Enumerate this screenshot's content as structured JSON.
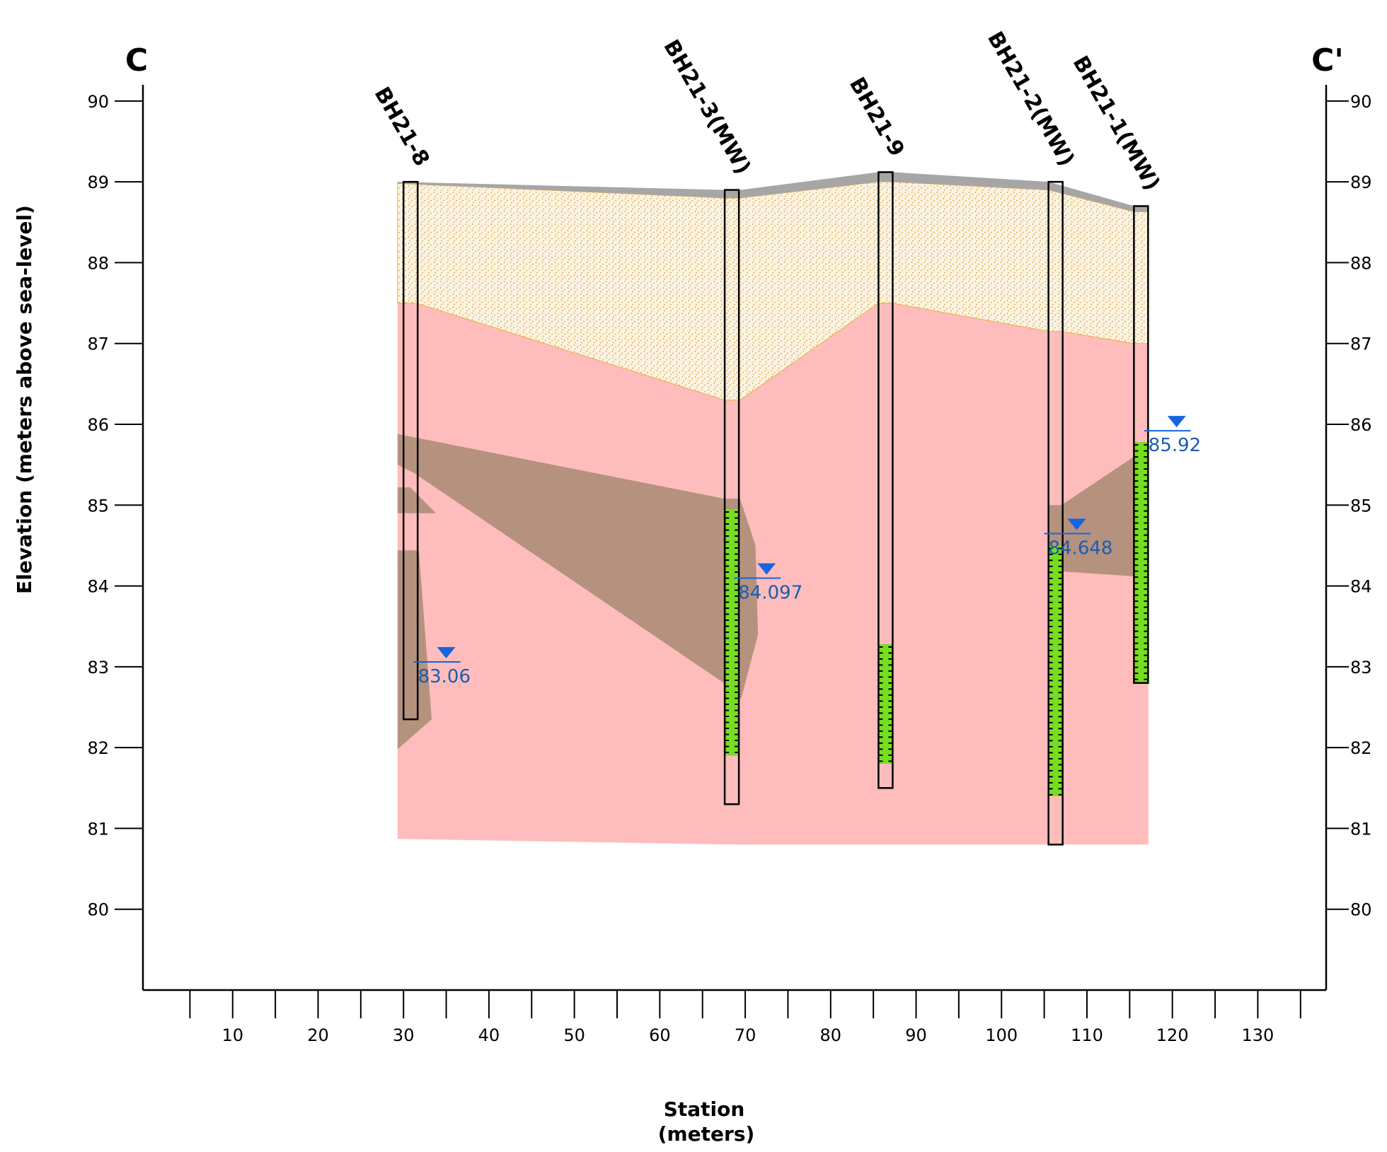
{
  "corner_labels": {
    "left": "C",
    "right": "C'"
  },
  "axes": {
    "y_title": "Elevation (meters above sea-level)",
    "x_title_line1": "Station",
    "x_title_line2": "(meters)",
    "y_range": [
      79,
      90.2
    ],
    "x_range": [
      -0.5,
      138
    ],
    "y_ticks": [
      "90",
      "89",
      "88",
      "87",
      "86",
      "85",
      "84",
      "83",
      "82",
      "81",
      "80"
    ],
    "x_ticks": [
      "10",
      "20",
      "30",
      "40",
      "50",
      "60",
      "70",
      "80",
      "90",
      "100",
      "110",
      "120",
      "130"
    ]
  },
  "colors": {
    "sand": "#fbf3e2",
    "sand_dots": "#d9a040",
    "clay": "#ffbcbc",
    "silt": "#b5927e",
    "topsoil": "#a6a6a6",
    "screen": "#77dd22",
    "water": "#1565e0"
  },
  "chart_data": {
    "type": "cross-section",
    "boreholes": [
      {
        "name": "BH21-8",
        "station": 30,
        "top": 89.0,
        "bottom": 82.35
      },
      {
        "name": "BH21-3(MW)",
        "station": 67.6,
        "top": 88.9,
        "bottom": 81.3,
        "screen_top": 84.95,
        "screen_bottom": 81.9
      },
      {
        "name": "BH21-9",
        "station": 85.6,
        "top": 89.12,
        "bottom": 81.5,
        "screen_top": 83.28,
        "screen_bottom": 81.8
      },
      {
        "name": "BH21-2(MW)",
        "station": 105.5,
        "top": 89.0,
        "bottom": 80.8,
        "screen_top": 84.5,
        "screen_bottom": 81.4
      },
      {
        "name": "BH21-1(MW)",
        "station": 115.5,
        "top": 88.7,
        "bottom": 82.8,
        "screen_top": 85.78,
        "screen_bottom": 82.8
      }
    ],
    "water_levels": [
      {
        "label": "83.06",
        "station": 35,
        "elevation": 83.06
      },
      {
        "label": "84.097",
        "station": 72.5,
        "elevation": 84.097
      },
      {
        "label": "84.648",
        "station": 108.8,
        "elevation": 84.648
      },
      {
        "label": "85.92",
        "station": 120.5,
        "elevation": 85.92
      }
    ],
    "layers": {
      "clay": [
        [
          29.3,
          87.5
        ],
        [
          31.5,
          87.5
        ],
        [
          67.6,
          86.3
        ],
        [
          69.4,
          86.3
        ],
        [
          85.6,
          87.5
        ],
        [
          87.2,
          87.5
        ],
        [
          105.5,
          87.15
        ],
        [
          107,
          87.15
        ],
        [
          115.5,
          87.0
        ],
        [
          117.2,
          87.0
        ],
        [
          117.2,
          80.8
        ],
        [
          69.4,
          80.8
        ],
        [
          29.3,
          80.87
        ]
      ],
      "sand": [
        [
          29.3,
          88.98
        ],
        [
          67.6,
          88.8
        ],
        [
          69.4,
          88.8
        ],
        [
          85.6,
          89.0
        ],
        [
          87.2,
          89.0
        ],
        [
          105.5,
          88.9
        ],
        [
          115.5,
          88.63
        ],
        [
          117.2,
          88.63
        ],
        [
          117.2,
          87.0
        ],
        [
          115.5,
          87.0
        ],
        [
          107,
          87.15
        ],
        [
          105.5,
          87.15
        ],
        [
          87.2,
          87.5
        ],
        [
          85.6,
          87.5
        ],
        [
          69.4,
          86.3
        ],
        [
          67.6,
          86.3
        ],
        [
          31.5,
          87.5
        ],
        [
          29.3,
          87.5
        ]
      ],
      "topsoil": [
        [
          29.3,
          89.0
        ],
        [
          67.6,
          88.9
        ],
        [
          69.4,
          88.9
        ],
        [
          85.6,
          89.12
        ],
        [
          87.2,
          89.12
        ],
        [
          105.5,
          89.0
        ],
        [
          115.5,
          88.7
        ],
        [
          117.2,
          88.7
        ],
        [
          117.2,
          88.63
        ],
        [
          115.5,
          88.63
        ],
        [
          105.5,
          88.9
        ],
        [
          87.2,
          89.0
        ],
        [
          85.6,
          89.0
        ],
        [
          69.4,
          88.8
        ],
        [
          67.6,
          88.8
        ],
        [
          29.3,
          88.98
        ]
      ],
      "silt": [
        [
          [
            29.3,
            85.88
          ],
          [
            67.5,
            85.08
          ],
          [
            69.4,
            85.08
          ],
          [
            71.2,
            84.5
          ],
          [
            71.5,
            83.4
          ],
          [
            69.5,
            82.6
          ],
          [
            67.5,
            82.8
          ],
          [
            31.2,
            85.4
          ],
          [
            29.3,
            85.5
          ]
        ],
        [
          [
            29.3,
            85.22
          ],
          [
            30.8,
            85.22
          ],
          [
            33.8,
            84.9
          ],
          [
            29.3,
            84.9
          ]
        ],
        [
          [
            29.3,
            84.44
          ],
          [
            31.8,
            84.44
          ],
          [
            33.3,
            82.35
          ],
          [
            29.3,
            81.98
          ]
        ],
        [
          [
            105.5,
            85.0
          ],
          [
            107,
            85.0
          ],
          [
            115.5,
            85.6
          ],
          [
            115.5,
            84.12
          ],
          [
            107,
            84.18
          ],
          [
            105.5,
            84.2
          ]
        ]
      ]
    }
  }
}
